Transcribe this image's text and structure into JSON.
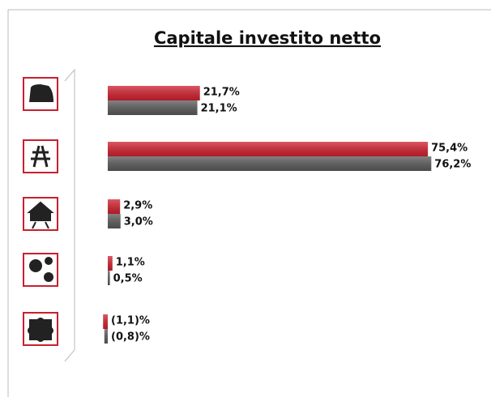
{
  "chart_data": {
    "type": "bar",
    "orientation": "horizontal",
    "title": "Capitale investito netto",
    "categories": [
      null,
      null,
      null,
      null,
      null
    ],
    "series": [
      {
        "color": "#d0202e",
        "values": [
          21.7,
          75.4,
          2.9,
          1.1,
          -1.1
        ],
        "value_labels": [
          "21,7%",
          "75,4%",
          "2,9%",
          "1,1%",
          "(1,1)%"
        ]
      },
      {
        "color": "#5a5a5a",
        "values": [
          21.1,
          76.2,
          3.0,
          0.5,
          -0.8
        ],
        "value_labels": [
          "21,1%",
          "76,2%",
          "3,0%",
          "0,5%",
          "(0,8)%"
        ]
      }
    ]
  }
}
